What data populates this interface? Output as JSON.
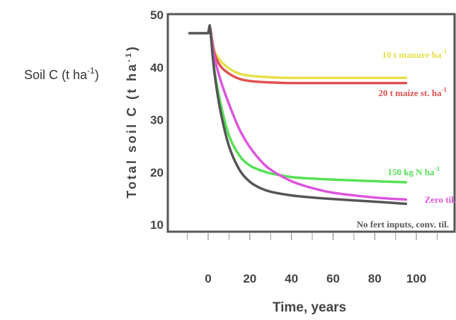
{
  "chart_data": {
    "type": "line",
    "title": "",
    "side_label": {
      "base": "Soil C (t ha",
      "sup": "-1",
      "tail": ")"
    },
    "xlabel": "Time, years",
    "ylabel": {
      "base": "Total soil C (t ha",
      "sup": "-1",
      "tail": ")"
    },
    "xlim": [
      -10,
      110
    ],
    "ylim": [
      3.5,
      50
    ],
    "x_ticks": [
      0,
      20,
      40,
      60,
      80,
      100
    ],
    "y_ticks": [
      10,
      20,
      30,
      40,
      50
    ],
    "grid": false,
    "series": [
      {
        "name": "10 t manure ha",
        "sup": "-1",
        "color": "#e6e04a",
        "x": [
          1,
          3,
          6,
          10,
          15,
          20,
          30,
          40,
          60,
          80,
          95
        ],
        "y": [
          47.5,
          43.2,
          41.2,
          39.8,
          38.8,
          38.4,
          38.1,
          38.0,
          38.0,
          38.0,
          38.0
        ]
      },
      {
        "name": "20 t maize st. ha",
        "sup": "-1",
        "color": "#e05050",
        "x": [
          1,
          3,
          6,
          10,
          15,
          20,
          30,
          40,
          60,
          80,
          95
        ],
        "y": [
          47.5,
          42.7,
          40.2,
          38.8,
          37.8,
          37.4,
          37.1,
          37.0,
          37.0,
          37.0,
          37.0
        ]
      },
      {
        "name": "150 kg N ha",
        "sup": "-1",
        "color": "#55e055",
        "x": [
          1,
          3,
          6,
          10,
          15,
          20,
          25,
          30,
          40,
          50,
          60,
          80,
          95
        ],
        "y": [
          47.5,
          39.5,
          33.0,
          27.0,
          23.2,
          21.3,
          20.4,
          19.8,
          19.1,
          18.8,
          18.6,
          18.3,
          18.1
        ]
      },
      {
        "name": "Zero til.",
        "sup": "",
        "color": "#dd55dd",
        "x": [
          1,
          3,
          6,
          10,
          15,
          20,
          25,
          30,
          40,
          50,
          60,
          80,
          95
        ],
        "y": [
          47.5,
          42.0,
          37.5,
          33.0,
          28.2,
          24.8,
          22.3,
          20.5,
          18.3,
          17.0,
          16.1,
          15.2,
          14.8
        ]
      },
      {
        "name": "No fert inputs, conv. til.",
        "sup": "",
        "color": "#555555",
        "x": [
          -9,
          -2,
          0,
          0.7,
          1.2,
          3,
          6,
          10,
          15,
          20,
          25,
          30,
          40,
          50,
          60,
          80,
          95
        ],
        "y": [
          46.5,
          46.5,
          46.5,
          48.0,
          46.5,
          39.0,
          31.5,
          25.0,
          20.5,
          18.2,
          17.0,
          16.3,
          15.6,
          15.2,
          14.9,
          14.4,
          14.0
        ]
      }
    ]
  }
}
